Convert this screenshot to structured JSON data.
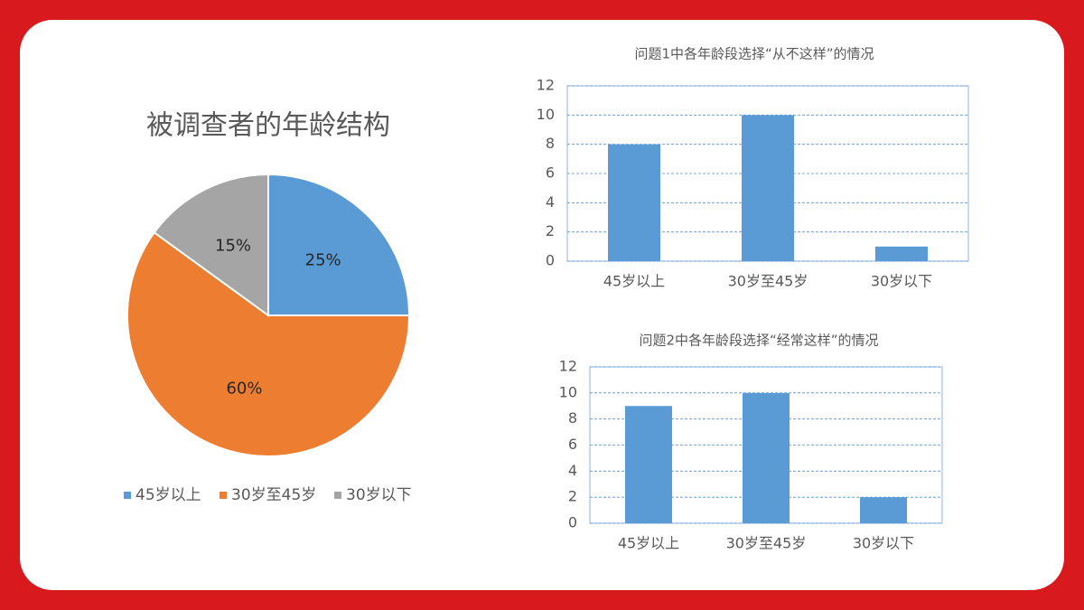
{
  "chart_data": [
    {
      "type": "pie",
      "title": "被调查者的年龄结构",
      "categories": [
        "45岁以上",
        "30岁至45岁",
        "30岁以下"
      ],
      "values": [
        25,
        60,
        15
      ],
      "value_labels": [
        "25%",
        "60%",
        "15%"
      ],
      "colors": [
        "#5b9bd5",
        "#ed7d31",
        "#a5a5a5"
      ],
      "legend": "bottom"
    },
    {
      "type": "bar",
      "title": "问题1中各年龄段选择“从不这样”的情况",
      "categories": [
        "45岁以上",
        "30岁至45岁",
        "30岁以下"
      ],
      "values": [
        8,
        10,
        1
      ],
      "color": "#5b9bd5",
      "ylim": [
        0,
        12
      ],
      "yticks": [
        0,
        2,
        4,
        6,
        8,
        10,
        12
      ],
      "grid": true
    },
    {
      "type": "bar",
      "title": "问题2中各年龄段选择“经常这样”的情况",
      "categories": [
        "45岁以上",
        "30岁至45岁",
        "30岁以下"
      ],
      "values": [
        9,
        10,
        2
      ],
      "color": "#5b9bd5",
      "ylim": [
        0,
        12
      ],
      "yticks": [
        0,
        2,
        4,
        6,
        8,
        10,
        12
      ],
      "grid": true
    }
  ]
}
